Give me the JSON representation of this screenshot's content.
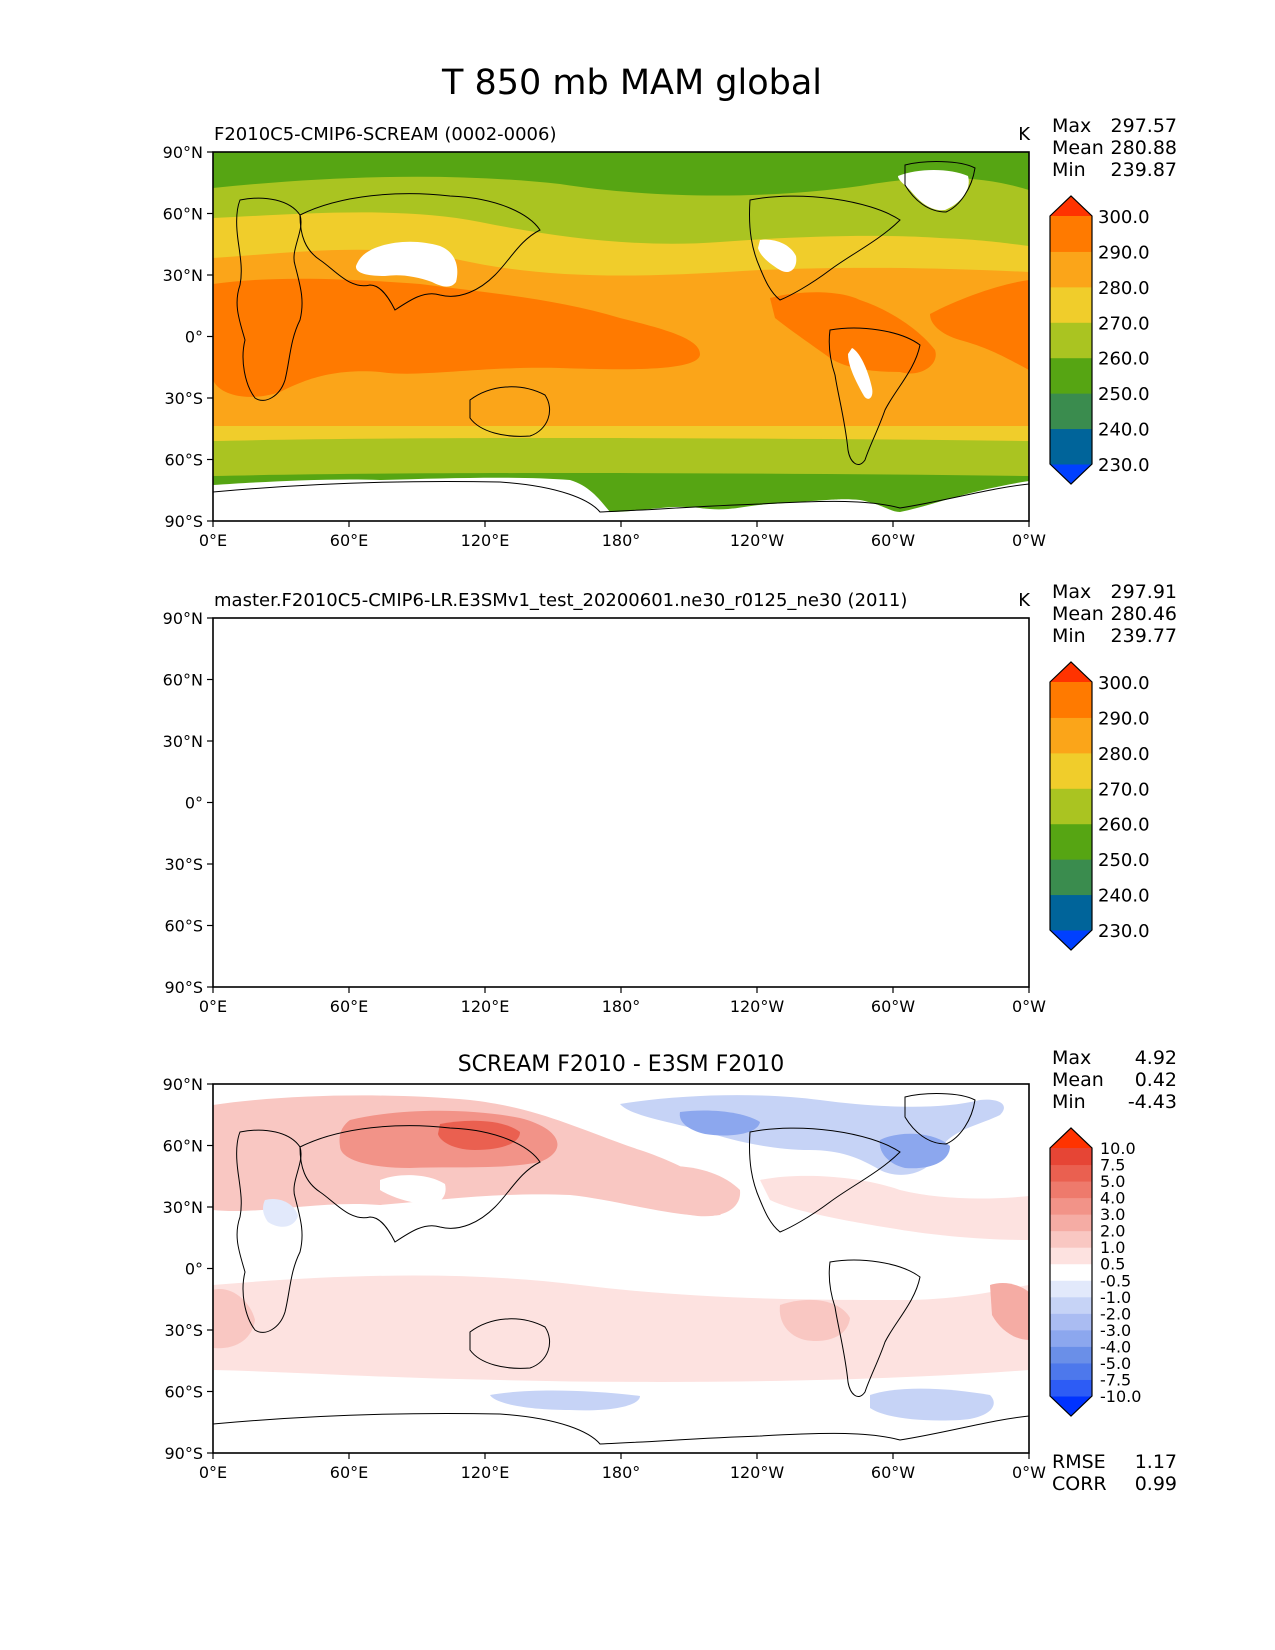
{
  "title": "T 850 mb MAM global",
  "x_ticks": [
    "0°E",
    "60°E",
    "120°E",
    "180°",
    "120°W",
    "60°W",
    "0°W"
  ],
  "y_ticks": [
    "90°N",
    "60°N",
    "30°N",
    "0°",
    "30°S",
    "60°S",
    "90°S"
  ],
  "panels": [
    {
      "title_left": "F2010C5-CMIP6-SCREAM (0002-0006)",
      "title_center": "",
      "units": "K",
      "stats": [
        {
          "label": "Max",
          "value": "297.57"
        },
        {
          "label": "Mean",
          "value": "280.88"
        },
        {
          "label": "Min",
          "value": "239.87"
        }
      ],
      "colorbar": {
        "colors": [
          "#0040ff",
          "#00649a",
          "#3a8c4e",
          "#56a513",
          "#aac421",
          "#f0cd2b",
          "#fba519",
          "#ff7a00",
          "#ff3300"
        ],
        "labels": [
          "230.0",
          "240.0",
          "250.0",
          "260.0",
          "270.0",
          "280.0",
          "290.0",
          "300.0"
        ]
      },
      "footer": []
    },
    {
      "title_left": "master.F2010C5-CMIP6-LR.E3SMv1_test_20200601.ne30_r0125_ne30 (2011)",
      "title_center": "",
      "units": "K",
      "stats": [
        {
          "label": "Max",
          "value": "297.91"
        },
        {
          "label": "Mean",
          "value": "280.46"
        },
        {
          "label": "Min",
          "value": "239.77"
        }
      ],
      "colorbar": {
        "colors": [
          "#0040ff",
          "#00649a",
          "#3a8c4e",
          "#56a513",
          "#aac421",
          "#f0cd2b",
          "#fba519",
          "#ff7a00",
          "#ff3300"
        ],
        "labels": [
          "230.0",
          "240.0",
          "250.0",
          "260.0",
          "270.0",
          "280.0",
          "290.0",
          "300.0"
        ]
      },
      "footer": []
    },
    {
      "title_left": "",
      "title_center": "SCREAM F2010 - E3SM F2010",
      "units": "",
      "stats": [
        {
          "label": "Max",
          "value": "4.92"
        },
        {
          "label": "Mean",
          "value": "0.42"
        },
        {
          "label": "Min",
          "value": "-4.43"
        }
      ],
      "colorbar": {
        "colors": [
          "#0033ff",
          "#2d5cf5",
          "#4d78ec",
          "#6a8fe8",
          "#8ca7ee",
          "#aabcf2",
          "#c6d3f6",
          "#e2e9fb",
          "#ffffff",
          "#fde2e0",
          "#f9c7c2",
          "#f5aca4",
          "#f29388",
          "#ee7a6c",
          "#ea6050",
          "#e64535",
          "#ff3300"
        ],
        "labels": [
          "-10.0",
          "-7.5",
          "-5.0",
          "-4.0",
          "-3.0",
          "-2.0",
          "-1.0",
          "-0.5",
          "0.5",
          "1.0",
          "2.0",
          "3.0",
          "4.0",
          "5.0",
          "7.5",
          "10.0"
        ]
      },
      "footer": [
        {
          "label": "RMSE",
          "value": "1.17"
        },
        {
          "label": "CORR",
          "value": "0.99"
        }
      ]
    }
  ]
}
